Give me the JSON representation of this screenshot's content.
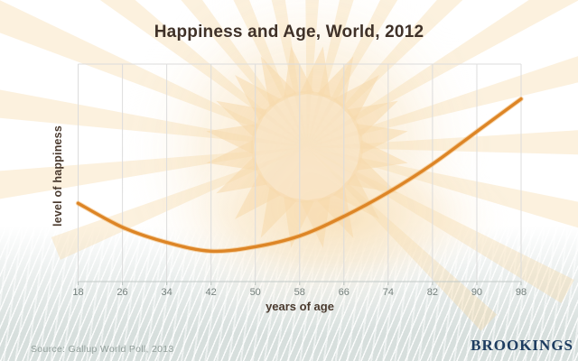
{
  "chart": {
    "title": "Happiness and Age, World, 2012",
    "ylabel": "level of happiness",
    "xlabel": "years of age"
  },
  "footer": {
    "source": "Source: Gallup World Poll, 2013",
    "brand": "BROOKINGS"
  },
  "colors": {
    "curve": "#dd8526",
    "curve_glow": "#f0a850",
    "gridline": "#dcdcdc",
    "axis_line": "#c3cac8",
    "tick_mark": "#b7bfbc",
    "title_text": "#3f3128",
    "axis_title_text": "#4a3a2e",
    "tick_text": "#75807d",
    "source_text": "#94a09c",
    "brand_text": "#1d3c60",
    "sun_ray": "#f6d9a6",
    "water_base": "#d7dfdd"
  },
  "chart_data": {
    "type": "line",
    "title": "Happiness and Age, World, 2012",
    "xlabel": "years of age",
    "ylabel": "level of happiness",
    "x_ticks": [
      18,
      26,
      34,
      42,
      50,
      58,
      66,
      74,
      82,
      90,
      98
    ],
    "xlim": [
      18,
      98
    ],
    "y_axis": "unlabeled relative scale (no ticks)",
    "grid": "vertical gridlines only",
    "legend": "none",
    "series": [
      {
        "name": "level of happiness by age (U-shaped curve)",
        "x": [
          18,
          26,
          34,
          42,
          50,
          58,
          66,
          74,
          82,
          90,
          98
        ],
        "y_relative": [
          0.36,
          0.25,
          0.18,
          0.14,
          0.16,
          0.21,
          0.3,
          0.41,
          0.54,
          0.69,
          0.84
        ],
        "minimum_age_approx": 42
      }
    ]
  }
}
